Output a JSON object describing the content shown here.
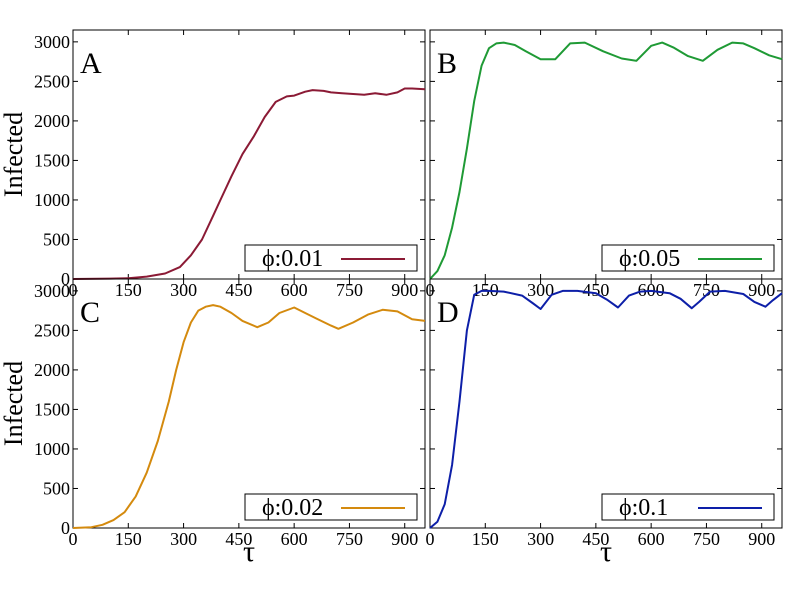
{
  "chart_data": [
    {
      "type": "line",
      "panel_label": "A",
      "legend": "ϕ:0.01",
      "color": "#8b1a35",
      "ylabel": "Infected",
      "xlabel": "",
      "xlim": [
        0,
        955
      ],
      "ylim": [
        0,
        3150
      ],
      "xticks": [
        "0",
        "150",
        "300",
        "450",
        "600",
        "750",
        "900"
      ],
      "yticks": [
        "0",
        "500",
        "1000",
        "1500",
        "2000",
        "2500",
        "3000"
      ],
      "legend_position": "bottom-right",
      "x": [
        0,
        100,
        150,
        200,
        250,
        290,
        320,
        350,
        380,
        400,
        430,
        460,
        490,
        520,
        550,
        580,
        600,
        630,
        650,
        680,
        700,
        730,
        760,
        790,
        820,
        850,
        880,
        900,
        920,
        955
      ],
      "y": [
        0,
        5,
        10,
        30,
        70,
        150,
        300,
        500,
        800,
        1000,
        1300,
        1580,
        1800,
        2050,
        2240,
        2310,
        2320,
        2370,
        2390,
        2380,
        2360,
        2350,
        2340,
        2330,
        2350,
        2330,
        2360,
        2410,
        2410,
        2400
      ]
    },
    {
      "type": "line",
      "panel_label": "B",
      "legend": "ϕ:0.05",
      "color": "#1f9a35",
      "ylabel": "",
      "xlabel": "",
      "xlim": [
        0,
        955
      ],
      "ylim": [
        0,
        3150
      ],
      "xticks": [
        "0",
        "150",
        "300",
        "450",
        "600",
        "750",
        "900"
      ],
      "yticks": [],
      "legend_position": "bottom-right",
      "x": [
        0,
        20,
        40,
        60,
        80,
        100,
        120,
        140,
        160,
        180,
        200,
        230,
        260,
        300,
        340,
        380,
        420,
        470,
        520,
        560,
        600,
        630,
        660,
        700,
        740,
        780,
        820,
        850,
        880,
        920,
        955
      ],
      "y": [
        0,
        100,
        300,
        650,
        1100,
        1650,
        2250,
        2700,
        2920,
        2980,
        2990,
        2960,
        2880,
        2780,
        2780,
        2980,
        2990,
        2880,
        2790,
        2760,
        2950,
        2990,
        2930,
        2820,
        2760,
        2900,
        2990,
        2980,
        2920,
        2830,
        2780
      ]
    },
    {
      "type": "line",
      "panel_label": "C",
      "legend": "ϕ:0.02",
      "color": "#d48a0e",
      "ylabel": "Infected",
      "xlabel": "τ",
      "xlim": [
        0,
        955
      ],
      "ylim": [
        0,
        3150
      ],
      "xticks": [
        "0",
        "150",
        "300",
        "450",
        "600",
        "750",
        "900"
      ],
      "yticks": [
        "0",
        "500",
        "1000",
        "1500",
        "2000",
        "2500",
        "3000"
      ],
      "legend_position": "bottom-right",
      "x": [
        0,
        50,
        80,
        110,
        140,
        170,
        200,
        230,
        260,
        280,
        300,
        320,
        340,
        360,
        380,
        400,
        430,
        460,
        500,
        530,
        560,
        600,
        630,
        660,
        700,
        720,
        760,
        800,
        840,
        880,
        920,
        955
      ],
      "y": [
        0,
        10,
        40,
        100,
        200,
        400,
        700,
        1100,
        1600,
        2000,
        2350,
        2600,
        2750,
        2800,
        2820,
        2800,
        2720,
        2620,
        2540,
        2600,
        2720,
        2790,
        2720,
        2650,
        2560,
        2520,
        2600,
        2700,
        2760,
        2740,
        2640,
        2620
      ]
    },
    {
      "type": "line",
      "panel_label": "D",
      "legend": "ϕ:0.1",
      "color": "#0d1fa8",
      "ylabel": "",
      "xlabel": "τ",
      "xlim": [
        0,
        955
      ],
      "ylim": [
        0,
        3150
      ],
      "xticks": [
        "0",
        "150",
        "300",
        "450",
        "600",
        "750",
        "900"
      ],
      "yticks": [],
      "legend_position": "bottom-right",
      "x": [
        0,
        20,
        40,
        60,
        80,
        100,
        120,
        140,
        160,
        200,
        250,
        280,
        300,
        330,
        360,
        400,
        450,
        480,
        510,
        540,
        570,
        600,
        650,
        680,
        710,
        730,
        760,
        800,
        850,
        880,
        910,
        930,
        955
      ],
      "y": [
        0,
        80,
        300,
        800,
        1600,
        2500,
        2950,
        3000,
        3000,
        2990,
        2940,
        2840,
        2770,
        2950,
        3000,
        3000,
        2970,
        2890,
        2790,
        2940,
        2990,
        3000,
        2970,
        2900,
        2780,
        2860,
        2990,
        3000,
        2960,
        2860,
        2800,
        2880,
        2970
      ]
    }
  ]
}
